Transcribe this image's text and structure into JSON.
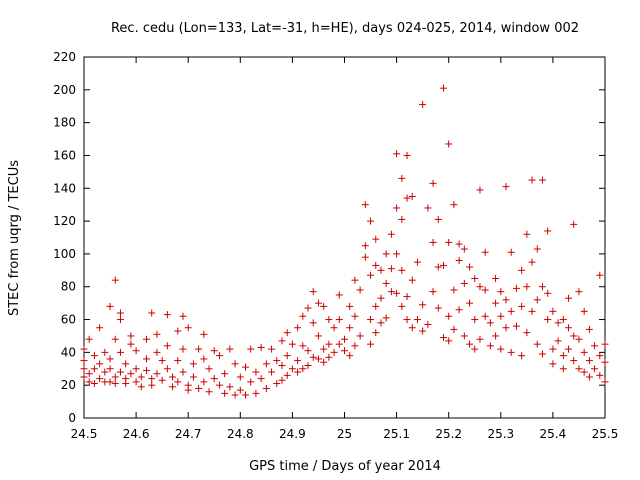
{
  "chart_data": {
    "type": "scatter",
    "title": "Rec. cedu (Lon=133, Lat=-31, h=HE), days 024-025, 2014, window 002",
    "xlabel": "GPS time / Days of year 2014",
    "ylabel": "STEC from uqrg / TECUs",
    "xlim": [
      24.5,
      25.5
    ],
    "ylim": [
      0,
      220
    ],
    "grid": false,
    "marker": "+",
    "marker_color": "#cc0000",
    "x_ticks": [
      24.5,
      24.6,
      24.7,
      24.8,
      24.9,
      25.0,
      25.1,
      25.2,
      25.3,
      25.4,
      25.5
    ],
    "x_tick_labels": [
      "24.5",
      "24.6",
      "24.7",
      "24.8",
      "24.9",
      "25",
      "25.1",
      "25.2",
      "25.3",
      "25.4",
      "25.5"
    ],
    "y_ticks": [
      0,
      20,
      40,
      60,
      80,
      100,
      120,
      140,
      160,
      180,
      200,
      220
    ],
    "y_tick_labels": [
      "0",
      "20",
      "40",
      "60",
      "80",
      "100",
      "120",
      "140",
      "160",
      "180",
      "200",
      "220"
    ],
    "series": [
      {
        "name": "STEC",
        "points": [
          [
            24.5,
            42
          ],
          [
            24.5,
            35
          ],
          [
            24.5,
            30
          ],
          [
            24.5,
            25
          ],
          [
            24.51,
            48
          ],
          [
            24.51,
            27
          ],
          [
            24.51,
            22
          ],
          [
            24.52,
            38
          ],
          [
            24.52,
            30
          ],
          [
            24.52,
            21
          ],
          [
            24.53,
            55
          ],
          [
            24.53,
            33
          ],
          [
            24.53,
            24
          ],
          [
            24.54,
            40
          ],
          [
            24.54,
            28
          ],
          [
            24.54,
            22
          ],
          [
            24.55,
            68
          ],
          [
            24.55,
            36
          ],
          [
            24.55,
            22
          ],
          [
            24.55,
            30
          ],
          [
            24.56,
            84
          ],
          [
            24.56,
            48
          ],
          [
            24.56,
            25
          ],
          [
            24.56,
            21
          ],
          [
            24.57,
            64
          ],
          [
            24.57,
            60
          ],
          [
            24.57,
            40
          ],
          [
            24.57,
            28
          ],
          [
            24.58,
            33
          ],
          [
            24.58,
            24
          ],
          [
            24.58,
            21
          ],
          [
            24.59,
            50
          ],
          [
            24.59,
            45
          ],
          [
            24.59,
            27
          ],
          [
            24.6,
            41
          ],
          [
            24.6,
            30
          ],
          [
            24.6,
            22
          ],
          [
            24.61,
            25
          ],
          [
            24.61,
            19
          ],
          [
            24.62,
            48
          ],
          [
            24.62,
            36
          ],
          [
            24.62,
            29
          ],
          [
            24.63,
            64
          ],
          [
            24.63,
            24
          ],
          [
            24.63,
            20
          ],
          [
            24.64,
            51
          ],
          [
            24.64,
            40
          ],
          [
            24.64,
            27
          ],
          [
            24.65,
            35
          ],
          [
            24.65,
            23
          ],
          [
            24.66,
            63
          ],
          [
            24.66,
            44
          ],
          [
            24.66,
            30
          ],
          [
            24.67,
            25
          ],
          [
            24.67,
            19
          ],
          [
            24.68,
            53
          ],
          [
            24.68,
            35
          ],
          [
            24.68,
            22
          ],
          [
            24.69,
            62
          ],
          [
            24.69,
            42
          ],
          [
            24.69,
            28
          ],
          [
            24.7,
            55
          ],
          [
            24.7,
            20
          ],
          [
            24.7,
            17
          ],
          [
            24.71,
            33
          ],
          [
            24.71,
            25
          ],
          [
            24.72,
            42
          ],
          [
            24.72,
            18
          ],
          [
            24.73,
            51
          ],
          [
            24.73,
            36
          ],
          [
            24.73,
            22
          ],
          [
            24.74,
            30
          ],
          [
            24.74,
            16
          ],
          [
            24.75,
            41
          ],
          [
            24.75,
            24
          ],
          [
            24.76,
            38
          ],
          [
            24.76,
            20
          ],
          [
            24.77,
            27
          ],
          [
            24.77,
            15
          ],
          [
            24.78,
            42
          ],
          [
            24.78,
            19
          ],
          [
            24.79,
            33
          ],
          [
            24.79,
            14
          ],
          [
            24.8,
            25
          ],
          [
            24.8,
            17
          ],
          [
            24.81,
            31
          ],
          [
            24.81,
            14
          ],
          [
            24.82,
            42
          ],
          [
            24.82,
            22
          ],
          [
            24.83,
            28
          ],
          [
            24.83,
            15
          ],
          [
            24.84,
            43
          ],
          [
            24.84,
            24
          ],
          [
            24.85,
            33
          ],
          [
            24.85,
            18
          ],
          [
            24.86,
            42
          ],
          [
            24.86,
            28
          ],
          [
            24.87,
            35
          ],
          [
            24.87,
            21
          ],
          [
            24.88,
            47
          ],
          [
            24.88,
            32
          ],
          [
            24.88,
            23
          ],
          [
            24.89,
            52
          ],
          [
            24.89,
            38
          ],
          [
            24.89,
            26
          ],
          [
            24.9,
            45
          ],
          [
            24.9,
            30
          ],
          [
            24.91,
            55
          ],
          [
            24.91,
            35
          ],
          [
            24.91,
            28
          ],
          [
            24.92,
            62
          ],
          [
            24.92,
            44
          ],
          [
            24.92,
            30
          ],
          [
            24.93,
            67
          ],
          [
            24.93,
            41
          ],
          [
            24.93,
            32
          ],
          [
            24.94,
            77
          ],
          [
            24.94,
            58
          ],
          [
            24.94,
            37
          ],
          [
            24.95,
            70
          ],
          [
            24.95,
            50
          ],
          [
            24.95,
            36
          ],
          [
            24.96,
            68
          ],
          [
            24.96,
            42
          ],
          [
            24.96,
            34
          ],
          [
            24.97,
            60
          ],
          [
            24.97,
            45
          ],
          [
            24.97,
            37
          ],
          [
            24.98,
            55
          ],
          [
            24.98,
            40
          ],
          [
            24.99,
            75
          ],
          [
            24.99,
            60
          ],
          [
            24.99,
            45
          ],
          [
            25.0,
            48
          ],
          [
            25.0,
            41
          ],
          [
            25.01,
            68
          ],
          [
            25.01,
            55
          ],
          [
            25.01,
            38
          ],
          [
            25.02,
            84
          ],
          [
            25.02,
            62
          ],
          [
            25.02,
            44
          ],
          [
            25.03,
            78
          ],
          [
            25.03,
            50
          ],
          [
            25.04,
            130
          ],
          [
            25.04,
            105
          ],
          [
            25.04,
            98
          ],
          [
            25.05,
            120
          ],
          [
            25.05,
            87
          ],
          [
            25.05,
            60
          ],
          [
            25.05,
            45
          ],
          [
            25.06,
            109
          ],
          [
            25.06,
            93
          ],
          [
            25.06,
            68
          ],
          [
            25.06,
            52
          ],
          [
            25.07,
            90
          ],
          [
            25.07,
            73
          ],
          [
            25.07,
            58
          ],
          [
            25.08,
            100
          ],
          [
            25.08,
            82
          ],
          [
            25.08,
            61
          ],
          [
            25.09,
            112
          ],
          [
            25.09,
            91
          ],
          [
            25.09,
            77
          ],
          [
            25.1,
            161
          ],
          [
            25.1,
            128
          ],
          [
            25.1,
            100
          ],
          [
            25.1,
            76
          ],
          [
            25.11,
            146
          ],
          [
            25.11,
            121
          ],
          [
            25.11,
            90
          ],
          [
            25.11,
            68
          ],
          [
            25.12,
            160
          ],
          [
            25.12,
            134
          ],
          [
            25.12,
            74
          ],
          [
            25.12,
            60
          ],
          [
            25.13,
            135
          ],
          [
            25.13,
            84
          ],
          [
            25.13,
            55
          ],
          [
            25.14,
            95
          ],
          [
            25.14,
            60
          ],
          [
            25.15,
            191
          ],
          [
            25.15,
            69
          ],
          [
            25.15,
            53
          ],
          [
            25.16,
            128
          ],
          [
            25.16,
            57
          ],
          [
            25.17,
            143
          ],
          [
            25.17,
            107
          ],
          [
            25.17,
            77
          ],
          [
            25.18,
            121
          ],
          [
            25.18,
            92
          ],
          [
            25.18,
            67
          ],
          [
            25.19,
            201
          ],
          [
            25.19,
            93
          ],
          [
            25.19,
            49
          ],
          [
            25.2,
            167
          ],
          [
            25.2,
            107
          ],
          [
            25.2,
            62
          ],
          [
            25.2,
            47
          ],
          [
            25.21,
            130
          ],
          [
            25.21,
            78
          ],
          [
            25.21,
            54
          ],
          [
            25.22,
            106
          ],
          [
            25.22,
            96
          ],
          [
            25.22,
            66
          ],
          [
            25.23,
            103
          ],
          [
            25.23,
            82
          ],
          [
            25.23,
            50
          ],
          [
            25.24,
            92
          ],
          [
            25.24,
            70
          ],
          [
            25.24,
            45
          ],
          [
            25.25,
            85
          ],
          [
            25.25,
            60
          ],
          [
            25.25,
            42
          ],
          [
            25.26,
            139
          ],
          [
            25.26,
            80
          ],
          [
            25.26,
            48
          ],
          [
            25.27,
            101
          ],
          [
            25.27,
            78
          ],
          [
            25.27,
            62
          ],
          [
            25.28,
            58
          ],
          [
            25.28,
            44
          ],
          [
            25.29,
            85
          ],
          [
            25.29,
            70
          ],
          [
            25.29,
            50
          ],
          [
            25.3,
            77
          ],
          [
            25.3,
            62
          ],
          [
            25.3,
            42
          ],
          [
            25.31,
            141
          ],
          [
            25.31,
            72
          ],
          [
            25.31,
            55
          ],
          [
            25.32,
            101
          ],
          [
            25.32,
            65
          ],
          [
            25.32,
            40
          ],
          [
            25.33,
            79
          ],
          [
            25.33,
            56
          ],
          [
            25.34,
            90
          ],
          [
            25.34,
            68
          ],
          [
            25.34,
            38
          ],
          [
            25.35,
            112
          ],
          [
            25.35,
            80
          ],
          [
            25.35,
            52
          ],
          [
            25.36,
            145
          ],
          [
            25.36,
            95
          ],
          [
            25.36,
            65
          ],
          [
            25.37,
            103
          ],
          [
            25.37,
            72
          ],
          [
            25.37,
            45
          ],
          [
            25.38,
            145
          ],
          [
            25.38,
            80
          ],
          [
            25.38,
            39
          ],
          [
            25.39,
            114
          ],
          [
            25.39,
            76
          ],
          [
            25.39,
            60
          ],
          [
            25.4,
            65
          ],
          [
            25.4,
            42
          ],
          [
            25.4,
            33
          ],
          [
            25.41,
            58
          ],
          [
            25.41,
            47
          ],
          [
            25.42,
            60
          ],
          [
            25.42,
            38
          ],
          [
            25.42,
            30
          ],
          [
            25.43,
            73
          ],
          [
            25.43,
            55
          ],
          [
            25.43,
            42
          ],
          [
            25.44,
            118
          ],
          [
            25.44,
            50
          ],
          [
            25.44,
            35
          ],
          [
            25.45,
            77
          ],
          [
            25.45,
            48
          ],
          [
            25.45,
            30
          ],
          [
            25.46,
            65
          ],
          [
            25.46,
            40
          ],
          [
            25.46,
            28
          ],
          [
            25.47,
            54
          ],
          [
            25.47,
            35
          ],
          [
            25.47,
            25
          ],
          [
            25.48,
            44
          ],
          [
            25.48,
            30
          ],
          [
            25.49,
            87
          ],
          [
            25.49,
            38
          ],
          [
            25.49,
            26
          ],
          [
            25.5,
            45
          ],
          [
            25.5,
            34
          ],
          [
            25.5,
            22
          ]
        ]
      }
    ]
  }
}
